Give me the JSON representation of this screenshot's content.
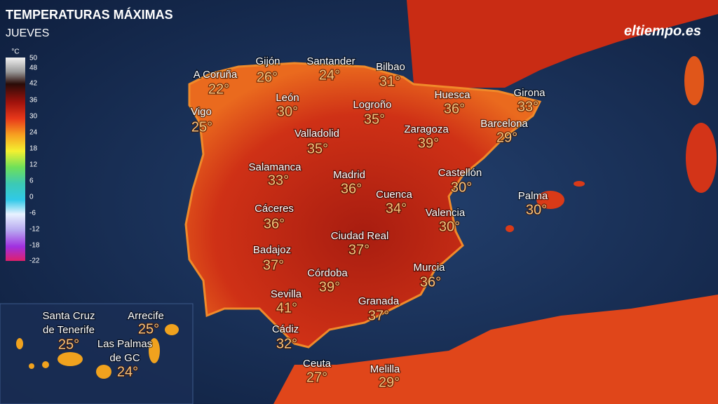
{
  "header": {
    "title": "TEMPERATURAS MÁXIMAS",
    "subtitle": "JUEVES",
    "brand": "eltiempo.es"
  },
  "legend": {
    "unit": "°C",
    "ticks": [
      "50",
      "48",
      "42",
      "36",
      "30",
      "24",
      "18",
      "12",
      "6",
      "0",
      "-6",
      "-12",
      "-18",
      "-22"
    ]
  },
  "cities": [
    {
      "name": "A Coruña",
      "temp": "22°"
    },
    {
      "name": "Gijón",
      "temp": "26°"
    },
    {
      "name": "Santander",
      "temp": "24°"
    },
    {
      "name": "Bilbao",
      "temp": "31°"
    },
    {
      "name": "León",
      "temp": "30°"
    },
    {
      "name": "Vigo",
      "temp": "25°"
    },
    {
      "name": "Logroño",
      "temp": "35°"
    },
    {
      "name": "Huesca",
      "temp": "36°"
    },
    {
      "name": "Girona",
      "temp": "33°"
    },
    {
      "name": "Zaragoza",
      "temp": "39°"
    },
    {
      "name": "Barcelona",
      "temp": "29°"
    },
    {
      "name": "Valladolid",
      "temp": "35°"
    },
    {
      "name": "Salamanca",
      "temp": "33°"
    },
    {
      "name": "Madrid",
      "temp": "36°"
    },
    {
      "name": "Castellón",
      "temp": "30°"
    },
    {
      "name": "Cuenca",
      "temp": "34°"
    },
    {
      "name": "Palma",
      "temp": "30°"
    },
    {
      "name": "Cáceres",
      "temp": "36°"
    },
    {
      "name": "Valencia",
      "temp": "30°"
    },
    {
      "name": "Ciudad Real",
      "temp": "37°"
    },
    {
      "name": "Badajoz",
      "temp": "37°"
    },
    {
      "name": "Córdoba",
      "temp": "39°"
    },
    {
      "name": "Murcia",
      "temp": "36°"
    },
    {
      "name": "Sevilla",
      "temp": "41°"
    },
    {
      "name": "Granada",
      "temp": "37°"
    },
    {
      "name": "Cádiz",
      "temp": "32°"
    },
    {
      "name": "Ceuta",
      "temp": "27°"
    },
    {
      "name": "Melilla",
      "temp": "29°"
    }
  ],
  "canarias": [
    {
      "name": [
        "Santa Cruz",
        "de Tenerife"
      ],
      "temp": "25°"
    },
    {
      "name": [
        "Arrecife"
      ],
      "temp": "25°"
    },
    {
      "name": [
        "Las Palmas",
        "de GC"
      ],
      "temp": "24°"
    }
  ]
}
